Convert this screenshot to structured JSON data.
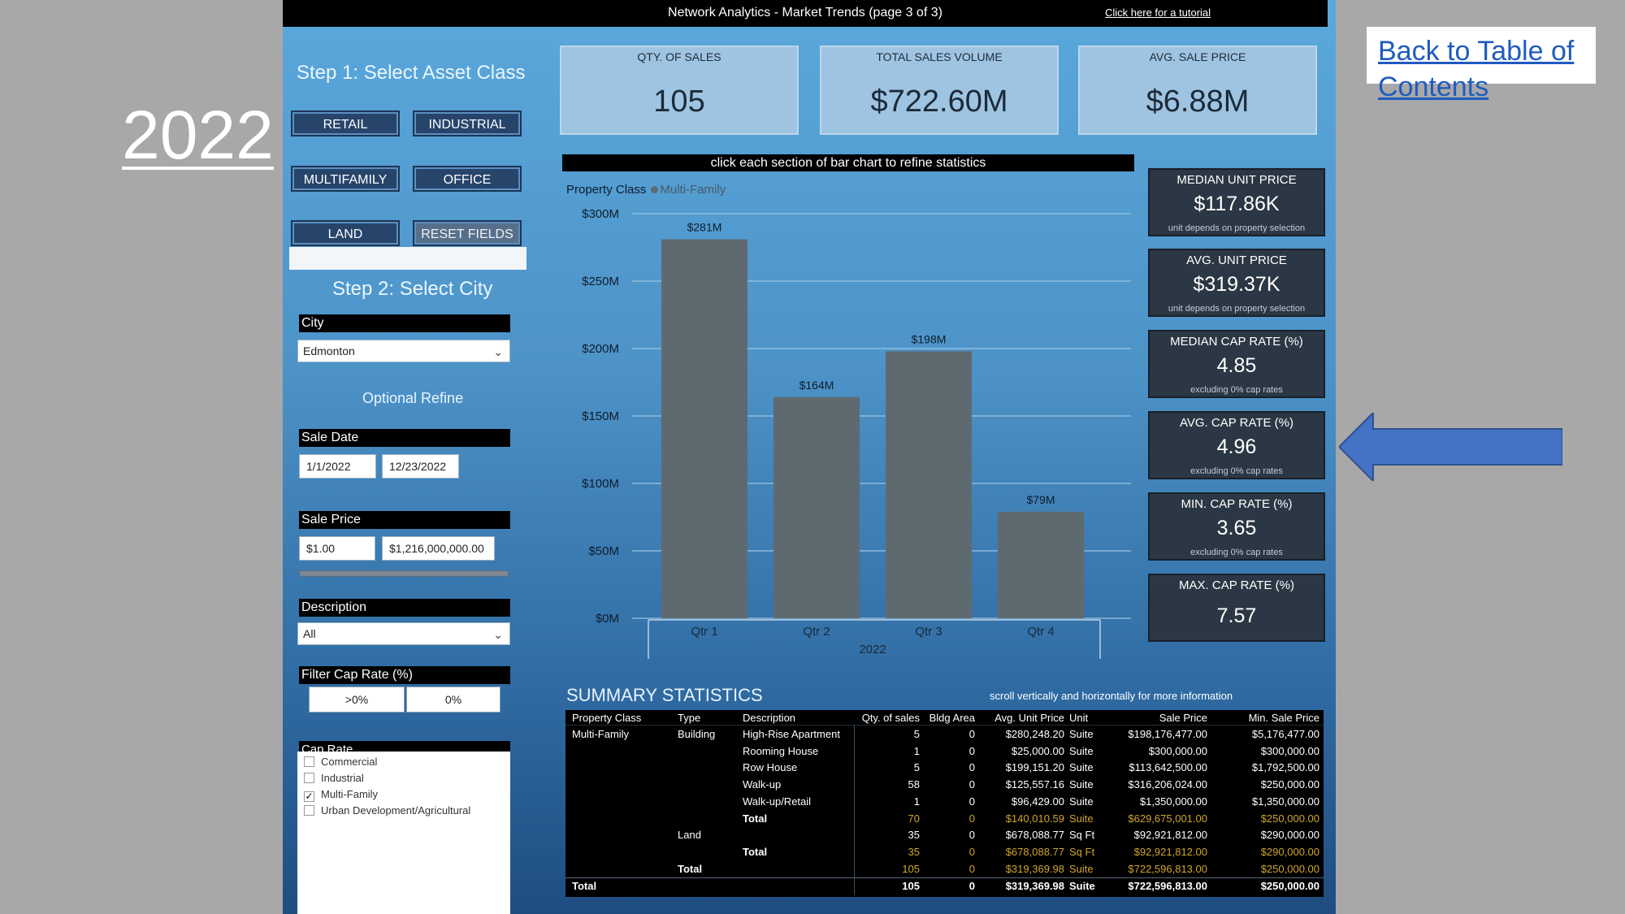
{
  "page": {
    "year": "2022",
    "toc_link": "Back to Table of Contents"
  },
  "header": {
    "title": "Network Analytics - Market Trends (page 3 of 3)",
    "tutorial": "Click here for a tutorial"
  },
  "filters": {
    "step1": "Step 1: Select Asset Class",
    "buttons": [
      "RETAIL",
      "INDUSTRIAL",
      "MULTIFAMILY",
      "OFFICE",
      "LAND",
      "RESET FIELDS"
    ],
    "step2": "Step 2: Select City",
    "city_label": "City",
    "city_value": "Edmonton",
    "optional": "Optional Refine",
    "sale_date_label": "Sale Date",
    "sale_date_from": "1/1/2022",
    "sale_date_to": "12/23/2022",
    "sale_price_label": "Sale Price",
    "sale_price_min": "$1.00",
    "sale_price_max": "$1,216,000,000.00",
    "description_label": "Description",
    "description_value": "All",
    "cap_filter_label": "Filter Cap Rate (%)",
    "cap_filter_a": ">0%",
    "cap_filter_b": "0%",
    "cap_rate_label": "Cap Rate",
    "cap_rate_options": [
      {
        "label": "Commercial",
        "checked": false
      },
      {
        "label": "Industrial",
        "checked": false
      },
      {
        "label": "Multi-Family",
        "checked": true
      },
      {
        "label": "Urban Development/Agricultural",
        "checked": false
      }
    ]
  },
  "kpis": [
    {
      "label": "QTY. OF SALES",
      "value": "105"
    },
    {
      "label": "TOTAL SALES VOLUME",
      "value": "$722.60M"
    },
    {
      "label": "AVG. SALE PRICE",
      "value": "$6.88M"
    }
  ],
  "chart_caption": "click each section of bar chart to refine statistics",
  "chart_data": {
    "type": "bar",
    "legend_title": "Property Class",
    "series": [
      {
        "name": "Multi-Family",
        "values": [
          281,
          164,
          198,
          79
        ]
      }
    ],
    "categories": [
      "Qtr 1",
      "Qtr 2",
      "Qtr 3",
      "Qtr 4"
    ],
    "data_labels": [
      "$281M",
      "$164M",
      "$198M",
      "$79M"
    ],
    "xlabel": "2022",
    "yticks": [
      "$0M",
      "$50M",
      "$100M",
      "$150M",
      "$200M",
      "$250M",
      "$300M"
    ],
    "ylim": [
      0,
      300
    ],
    "bar_color": "#5f6a70"
  },
  "stats": [
    {
      "label": "MEDIAN UNIT PRICE",
      "value": "$117.86K",
      "note": "unit depends on property selection"
    },
    {
      "label": "AVG. UNIT PRICE",
      "value": "$319.37K",
      "note": "unit depends on property selection"
    },
    {
      "label": "MEDIAN CAP RATE (%)",
      "value": "4.85",
      "note": "excluding 0% cap rates"
    },
    {
      "label": "AVG. CAP RATE (%)",
      "value": "4.96",
      "note": "excluding 0% cap rates"
    },
    {
      "label": "MIN. CAP RATE (%)",
      "value": "3.65",
      "note": "excluding 0% cap rates"
    },
    {
      "label": "MAX. CAP RATE (%)",
      "value": "7.57",
      "note": ""
    }
  ],
  "summary": {
    "title": "SUMMARY STATISTICS",
    "note": "scroll vertically and horizontally for more information",
    "headers": [
      "Property Class",
      "Type",
      "Description",
      "Qty. of sales",
      "Bldg Area",
      "Avg. Unit Price",
      "Unit",
      "Sale Price",
      "Min. Sale Price"
    ],
    "rows": [
      {
        "pc": "Multi-Family",
        "type": "Building",
        "desc": "High-Rise Apartment",
        "qty": "5",
        "area": "0",
        "avg": "$280,248.20",
        "unit": "Suite",
        "sale": "$198,176,477.00",
        "min": "$5,176,477.00",
        "kind": "normal"
      },
      {
        "pc": "",
        "type": "",
        "desc": "Rooming House",
        "qty": "1",
        "area": "0",
        "avg": "$25,000.00",
        "unit": "Suite",
        "sale": "$300,000.00",
        "min": "$300,000.00",
        "kind": "normal"
      },
      {
        "pc": "",
        "type": "",
        "desc": "Row House",
        "qty": "5",
        "area": "0",
        "avg": "$199,151.20",
        "unit": "Suite",
        "sale": "$113,642,500.00",
        "min": "$1,792,500.00",
        "kind": "normal"
      },
      {
        "pc": "",
        "type": "",
        "desc": "Walk-up",
        "qty": "58",
        "area": "0",
        "avg": "$125,557.16",
        "unit": "Suite",
        "sale": "$316,206,024.00",
        "min": "$250,000.00",
        "kind": "normal"
      },
      {
        "pc": "",
        "type": "",
        "desc": "Walk-up/Retail",
        "qty": "1",
        "area": "0",
        "avg": "$96,429.00",
        "unit": "Suite",
        "sale": "$1,350,000.00",
        "min": "$1,350,000.00",
        "kind": "normal"
      },
      {
        "pc": "",
        "type": "",
        "desc": "Total",
        "qty": "70",
        "area": "0",
        "avg": "$140,010.59",
        "unit": "Suite",
        "sale": "$629,675,001.00",
        "min": "$250,000.00",
        "kind": "subtotal"
      },
      {
        "pc": "",
        "type": "Land",
        "desc": "",
        "qty": "35",
        "area": "0",
        "avg": "$678,088.77",
        "unit": "Sq Ft",
        "sale": "$92,921,812.00",
        "min": "$290,000.00",
        "kind": "normal"
      },
      {
        "pc": "",
        "type": "",
        "desc": "Total",
        "qty": "35",
        "area": "0",
        "avg": "$678,088.77",
        "unit": "Sq Ft",
        "sale": "$92,921,812.00",
        "min": "$290,000.00",
        "kind": "subtotal"
      },
      {
        "pc": "",
        "type": "Total",
        "desc": "",
        "qty": "105",
        "area": "0",
        "avg": "$319,369.98",
        "unit": "Suite",
        "sale": "$722,596,813.00",
        "min": "$250,000.00",
        "kind": "subtotal"
      },
      {
        "pc": "Total",
        "type": "",
        "desc": "",
        "qty": "105",
        "area": "0",
        "avg": "$319,369.98",
        "unit": "Suite",
        "sale": "$722,596,813.00",
        "min": "$250,000.00",
        "kind": "grand"
      }
    ]
  },
  "colors": {
    "accent_arrow": "#4472c4",
    "subtotal_text": "#d0a52a",
    "button_bg": "#27446b"
  }
}
